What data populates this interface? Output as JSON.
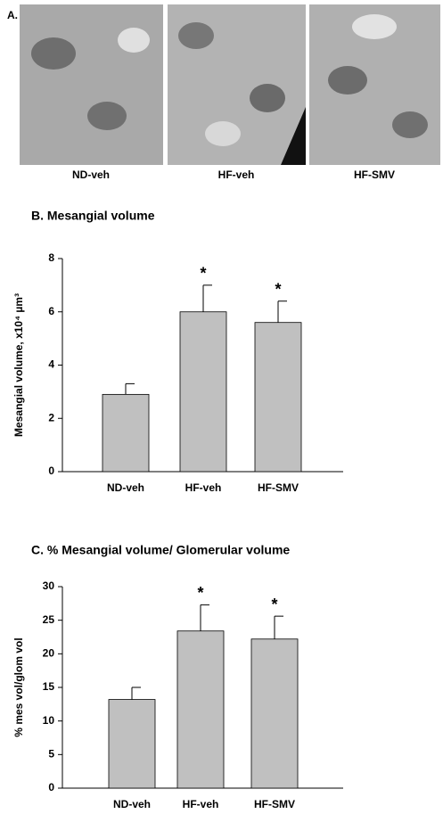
{
  "panel_a": {
    "label": "A.",
    "captions": [
      "ND-veh",
      "HF-veh",
      "HF-SMV"
    ]
  },
  "chart_data": [
    {
      "type": "bar",
      "title": "B. Mesangial volume",
      "ylabel": "Mesangial volume, x10⁴ µm³",
      "categories": [
        "ND-veh",
        "HF-veh",
        "HF-SMV"
      ],
      "values": [
        2.9,
        6.0,
        5.6
      ],
      "errors": [
        0.4,
        1.0,
        0.8
      ],
      "annotations": [
        null,
        "*",
        "*"
      ],
      "color": "#c0c0c0",
      "ylim": [
        0,
        8
      ],
      "yticks": [
        0,
        2,
        4,
        6,
        8
      ],
      "grid": false
    },
    {
      "type": "bar",
      "title": "C. % Mesangial volume/ Glomerular volume",
      "ylabel": "% mes vol/glom vol",
      "categories": [
        "ND-veh",
        "HF-veh",
        "HF-SMV"
      ],
      "values": [
        13.2,
        23.4,
        22.2
      ],
      "errors": [
        1.8,
        3.9,
        3.4
      ],
      "annotations": [
        null,
        "*",
        "*"
      ],
      "color": "#c0c0c0",
      "ylim": [
        0,
        30
      ],
      "yticks": [
        0,
        5,
        10,
        15,
        20,
        25,
        30
      ],
      "grid": false
    }
  ]
}
